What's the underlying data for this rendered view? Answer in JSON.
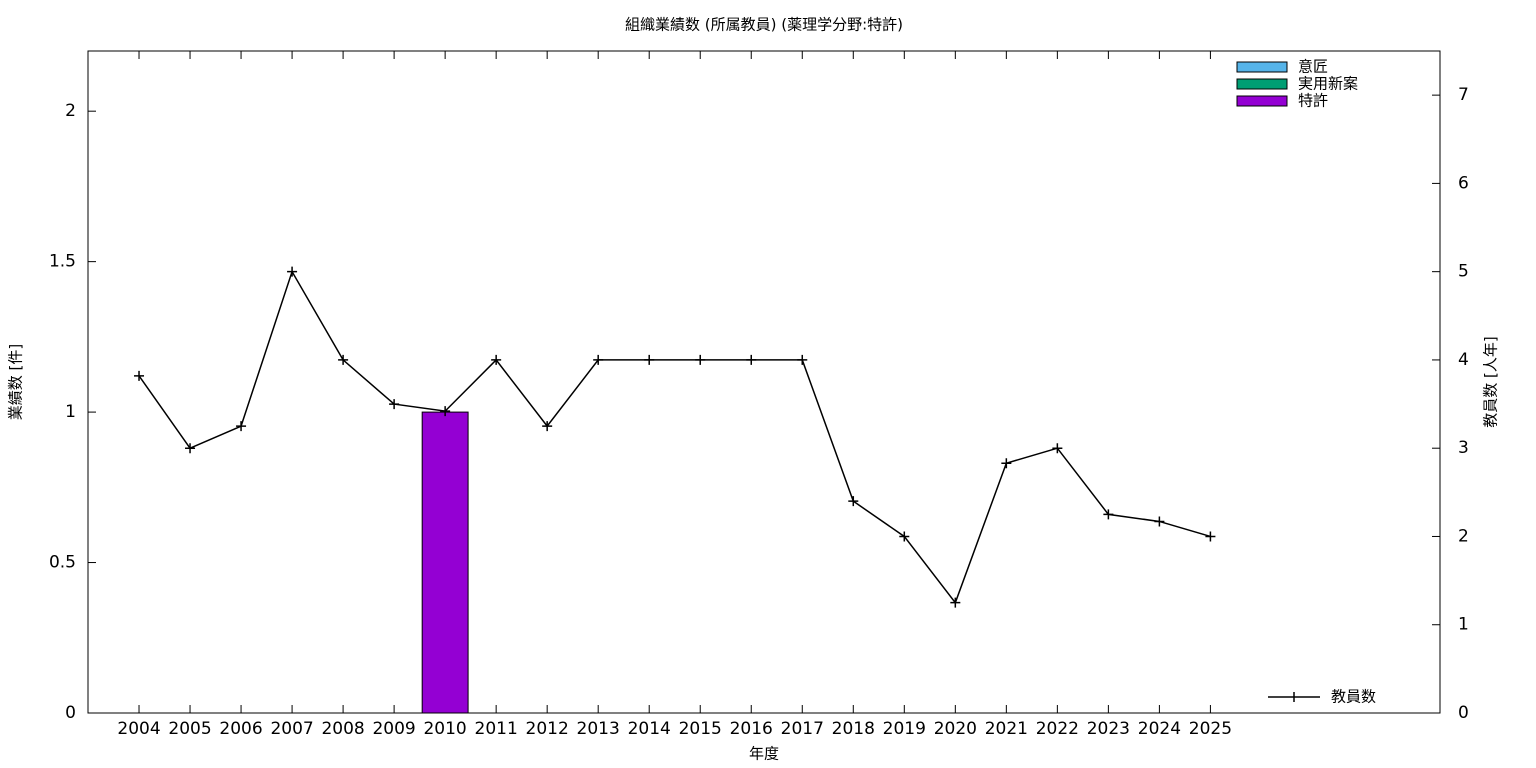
{
  "chart_data": {
    "type": "bar",
    "title": "組織業績数 (所属教員) (薬理学分野:特許)",
    "xlabel": "年度",
    "ylabel": "業績数 [件]",
    "y2label": "教員数 [人年]",
    "categories": [
      "2004",
      "2005",
      "2006",
      "2007",
      "2008",
      "2009",
      "2010",
      "2011",
      "2012",
      "2013",
      "2014",
      "2015",
      "2016",
      "2017",
      "2018",
      "2019",
      "2020",
      "2021",
      "2022",
      "2023",
      "2024",
      "2025"
    ],
    "series": [
      {
        "name": "意匠",
        "color": "#56b4e9",
        "type": "bar",
        "values": [
          0,
          0,
          0,
          0,
          0,
          0,
          0,
          0,
          0,
          0,
          0,
          0,
          0,
          0,
          0,
          0,
          0,
          0,
          0,
          0,
          0,
          0
        ]
      },
      {
        "name": "実用新案",
        "color": "#009e73",
        "type": "bar",
        "values": [
          0,
          0,
          0,
          0,
          0,
          0,
          0,
          0,
          0,
          0,
          0,
          0,
          0,
          0,
          0,
          0,
          0,
          0,
          0,
          0,
          0,
          0
        ]
      },
      {
        "name": "特許",
        "color": "#9400d3",
        "type": "bar",
        "values": [
          0,
          0,
          0,
          0,
          0,
          0,
          1,
          0,
          0,
          0,
          0,
          0,
          0,
          0,
          0,
          0,
          0,
          0,
          0,
          0,
          0,
          0
        ]
      },
      {
        "name": "教員数",
        "color": "#000000",
        "type": "line",
        "axis": "y2",
        "values": [
          3.82,
          3,
          3.25,
          5,
          4,
          3.5,
          3.42,
          4,
          3.25,
          4,
          4,
          4,
          4,
          4,
          2.4,
          2,
          1.25,
          2.83,
          3,
          2.25,
          2.17,
          2
        ]
      }
    ],
    "ylim": [
      0,
      2.2
    ],
    "yticks": [
      0,
      0.5,
      1,
      1.5,
      2
    ],
    "y2lim": [
      0,
      7.5
    ],
    "y2ticks": [
      0,
      1,
      2,
      3,
      4,
      5,
      6,
      7
    ],
    "grid": false,
    "legend": "upper right"
  }
}
